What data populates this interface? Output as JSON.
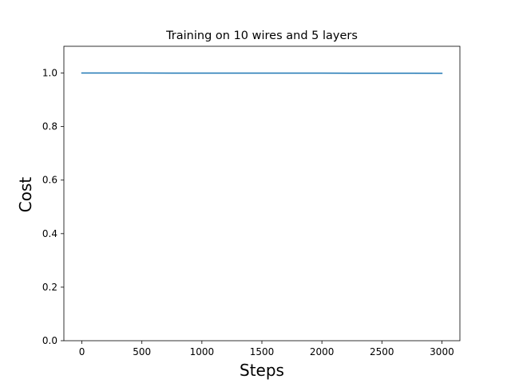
{
  "chart_data": {
    "type": "line",
    "title": "Training on 10 wires and 5 layers",
    "xlabel": "Steps",
    "ylabel": "Cost",
    "xlim": [
      -150,
      3150
    ],
    "ylim": [
      0.0,
      1.1
    ],
    "xticks": [
      0,
      500,
      1000,
      1500,
      2000,
      2500,
      3000
    ],
    "xtick_labels": [
      "0",
      "500",
      "1000",
      "1500",
      "2000",
      "2500",
      "3000"
    ],
    "yticks": [
      0.0,
      0.2,
      0.4,
      0.6,
      0.8,
      1.0
    ],
    "ytick_labels": [
      "0.0",
      "0.2",
      "0.4",
      "0.6",
      "0.8",
      "1.0"
    ],
    "grid": false,
    "series": [
      {
        "color": "#1f77b4",
        "x": [
          0,
          250,
          500,
          750,
          1000,
          1250,
          1500,
          1750,
          2000,
          2250,
          2500,
          2750,
          3000
        ],
        "y": [
          1.0,
          1.0,
          1.0,
          0.9999,
          0.9999,
          0.9998,
          0.9998,
          0.9997,
          0.9996,
          0.9995,
          0.9994,
          0.9992,
          0.999
        ]
      }
    ]
  }
}
